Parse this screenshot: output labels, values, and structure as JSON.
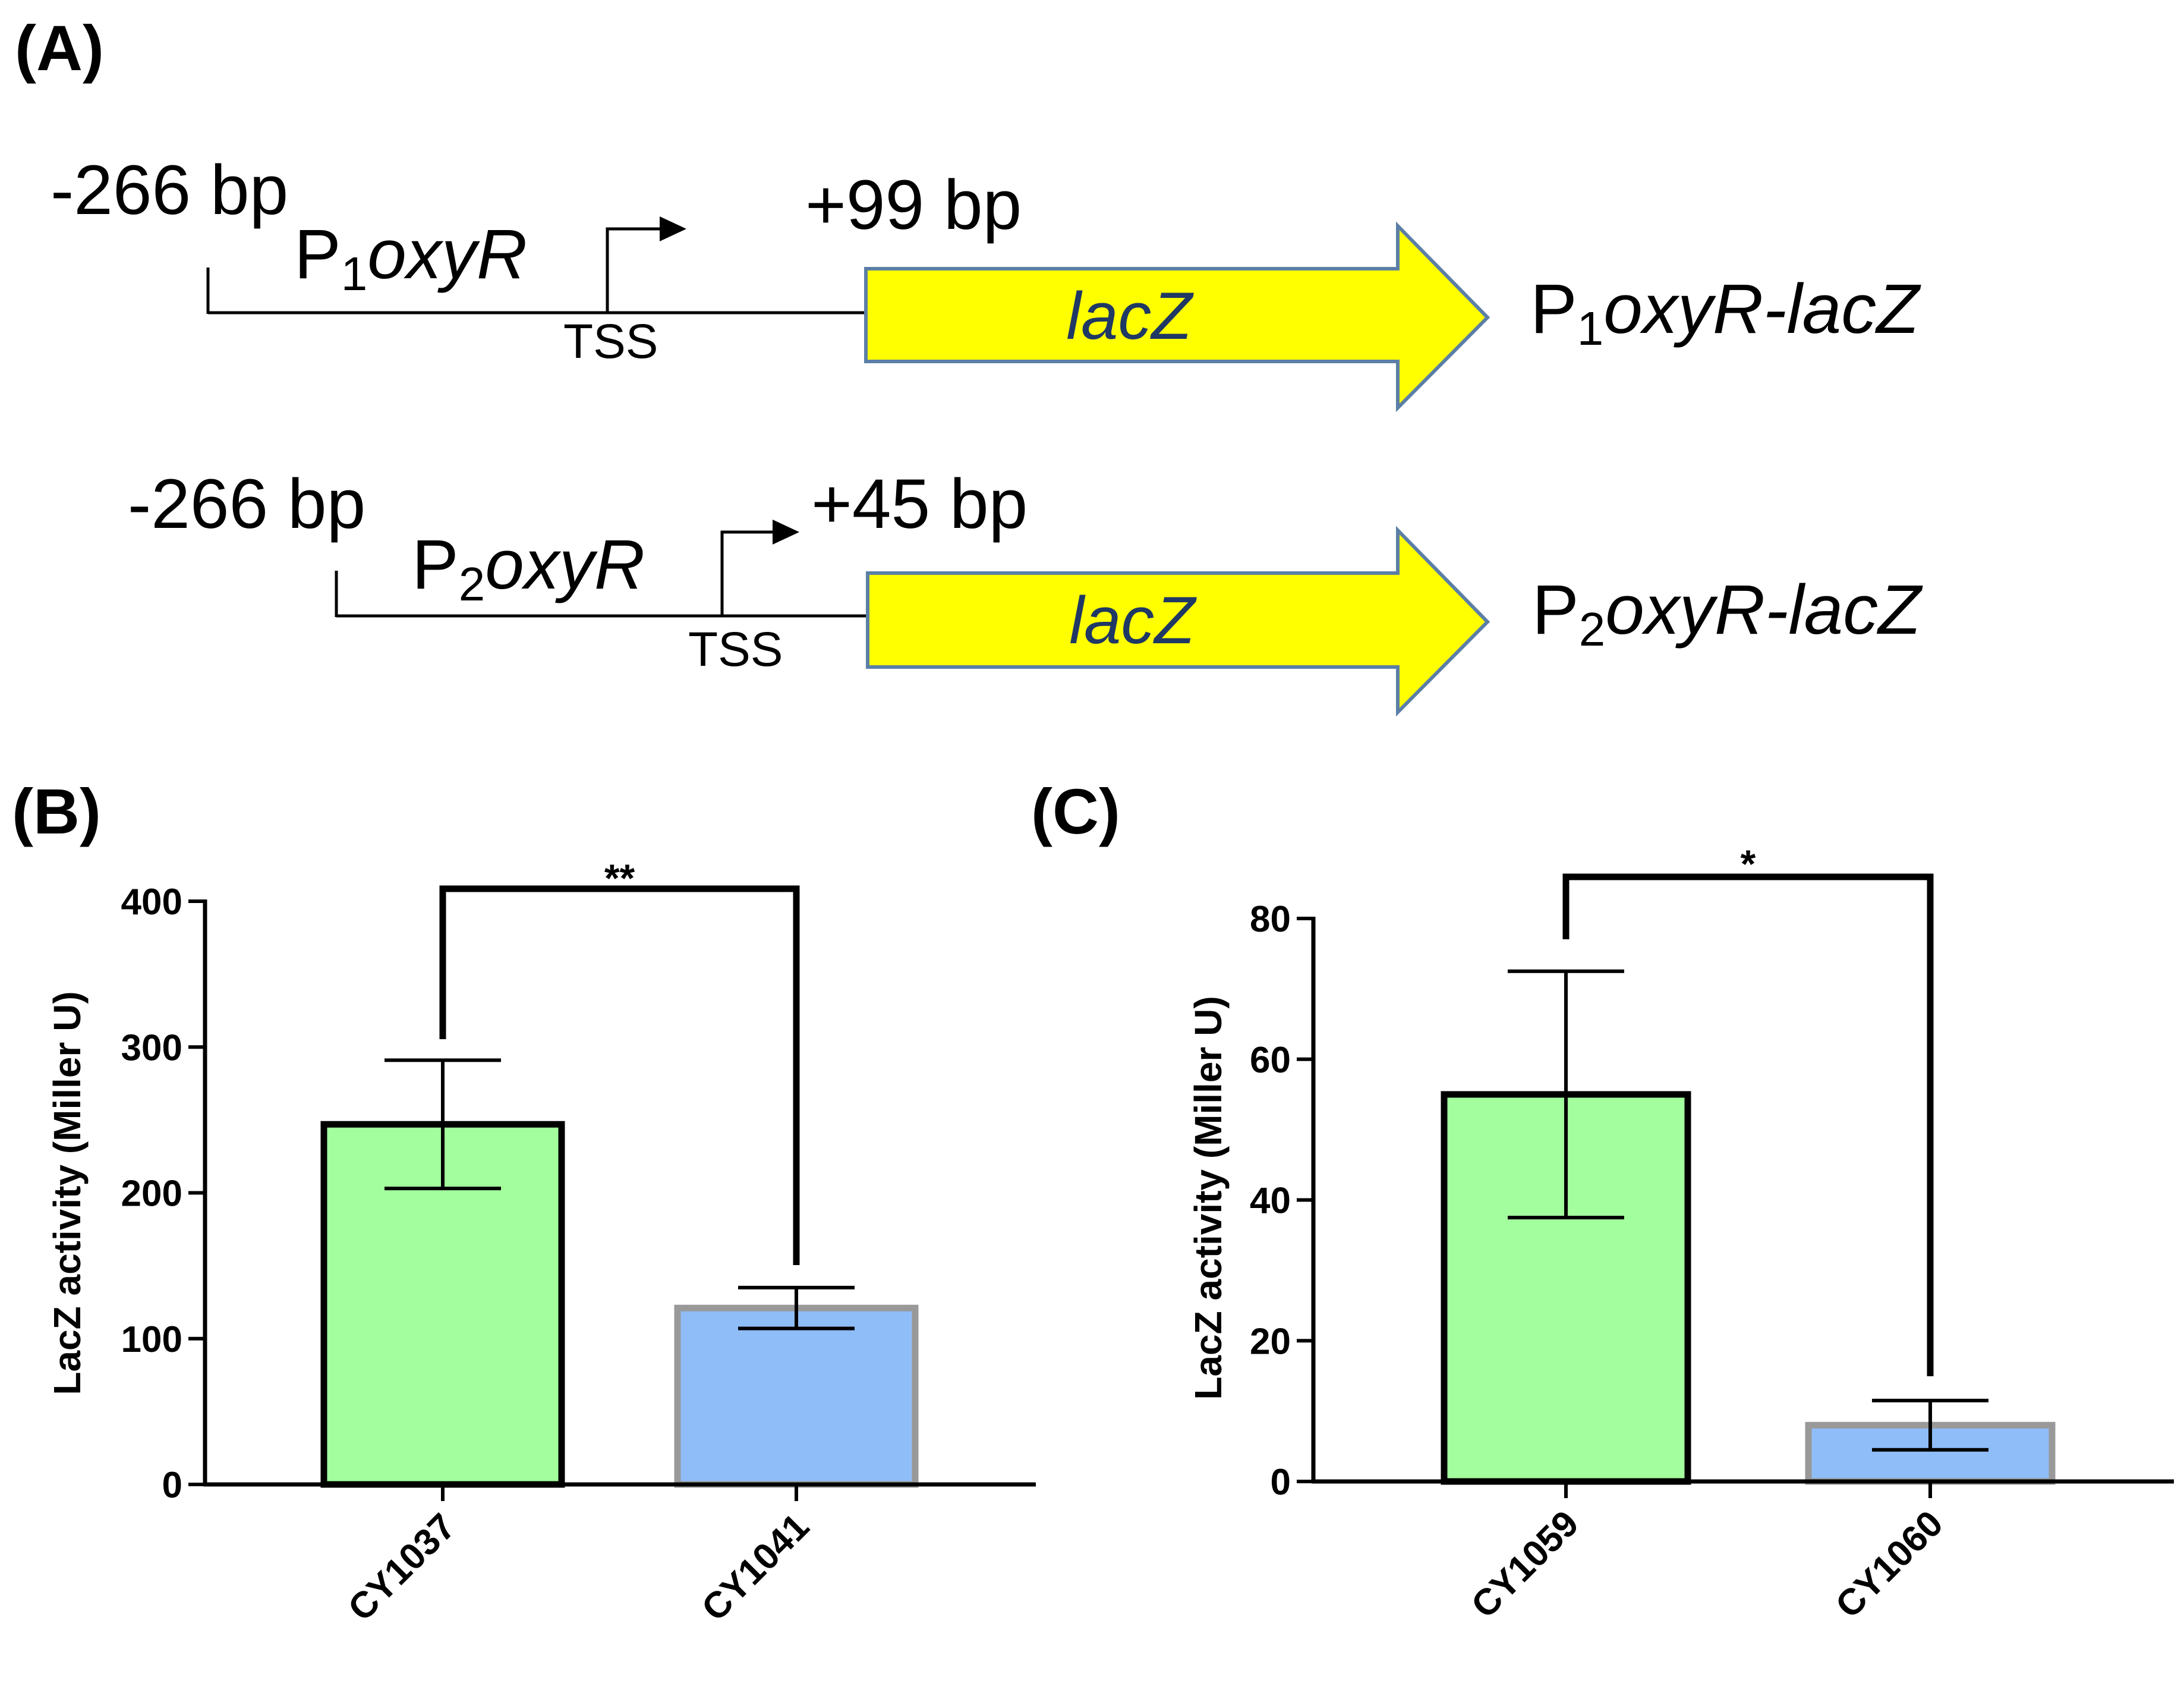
{
  "panels": {
    "a_label": "(A)",
    "b_label": "(B)",
    "c_label": "(C)"
  },
  "diagram": {
    "constructs": [
      {
        "upstream": "-266 bp",
        "downstream": "+99 bp",
        "promoter_prefix": "P",
        "promoter_sub": "1",
        "promoter_gene": "oxyR",
        "tss": "TSS",
        "gene": "lacZ",
        "fusion_prefix": "P",
        "fusion_sub": "1",
        "fusion_gene": "oxyR-lacZ"
      },
      {
        "upstream": "-266 bp",
        "downstream": "+45 bp",
        "promoter_prefix": "P",
        "promoter_sub": "2",
        "promoter_gene": "oxyR",
        "tss": "TSS",
        "gene": "lacZ",
        "fusion_prefix": "P",
        "fusion_sub": "2",
        "fusion_gene": "oxyR-lacZ"
      }
    ],
    "colors": {
      "arrow_fill": "#ffff00",
      "arrow_stroke": "#5b7fa6",
      "gene_text": "#1f3864"
    }
  },
  "chart_data": [
    {
      "type": "bar",
      "panel": "(B)",
      "ylabel": "LacZ activity (Miller U)",
      "ylim": [
        0,
        400
      ],
      "yticks": [
        0,
        100,
        200,
        300,
        400
      ],
      "categories": [
        "CY1037",
        "CY1041"
      ],
      "values": [
        247,
        121
      ],
      "errors": [
        44,
        14
      ],
      "colors": [
        "#a3ff9e",
        "#8fbdf8"
      ],
      "edge_colors": [
        "#000000",
        "#999999"
      ],
      "significance": "**"
    },
    {
      "type": "bar",
      "panel": "(C)",
      "ylabel": "LacZ activity (Miller U)",
      "ylim": [
        0,
        80
      ],
      "yticks": [
        0,
        20,
        40,
        60,
        80
      ],
      "categories": [
        "CY1059",
        "CY1060"
      ],
      "values": [
        55,
        8
      ],
      "errors": [
        17.5,
        3.5
      ],
      "colors": [
        "#a3ff9e",
        "#8fbdf8"
      ],
      "edge_colors": [
        "#000000",
        "#999999"
      ],
      "significance": "*"
    }
  ]
}
